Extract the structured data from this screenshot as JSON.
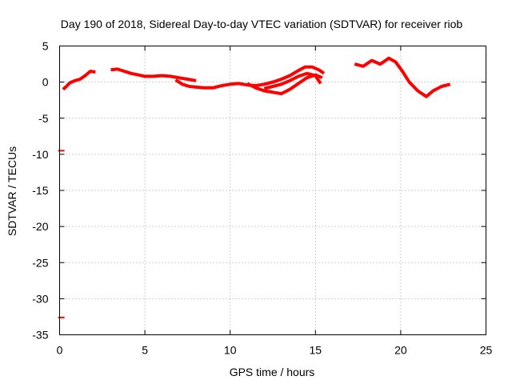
{
  "chart_data": {
    "type": "line",
    "title": "Day 190 of 2018, Sidereal Day-to-day VTEC variation (SDTVAR) for receiver riob",
    "xlabel": "GPS time / hours",
    "ylabel": "SDTVAR / TECUs",
    "xlim": [
      0,
      25
    ],
    "ylim": [
      -35,
      5
    ],
    "xticks": [
      0,
      5,
      10,
      15,
      20,
      25
    ],
    "yticks": [
      5,
      0,
      -5,
      -10,
      -15,
      -20,
      -25,
      -30,
      -35
    ],
    "grid": true,
    "legend": "none",
    "color": "#ff0000",
    "series": [
      {
        "name": "segment-1",
        "points": [
          [
            0.2,
            -1.0
          ],
          [
            0.4,
            -0.6
          ],
          [
            0.6,
            -0.1
          ],
          [
            0.9,
            0.2
          ],
          [
            1.2,
            0.4
          ],
          [
            1.5,
            0.9
          ],
          [
            1.8,
            1.5
          ],
          [
            2.1,
            1.4
          ]
        ]
      },
      {
        "name": "segment-2",
        "points": [
          [
            3.0,
            1.7
          ],
          [
            3.4,
            1.8
          ],
          [
            3.8,
            1.5
          ],
          [
            4.2,
            1.2
          ],
          [
            4.6,
            1.0
          ],
          [
            5.0,
            0.8
          ],
          [
            5.5,
            0.8
          ],
          [
            6.0,
            0.9
          ],
          [
            6.5,
            0.8
          ],
          [
            7.0,
            0.6
          ],
          [
            7.5,
            0.4
          ],
          [
            8.0,
            0.2
          ]
        ]
      },
      {
        "name": "segment-3",
        "points": [
          [
            6.8,
            0.3
          ],
          [
            7.2,
            -0.3
          ],
          [
            7.6,
            -0.6
          ],
          [
            8.0,
            -0.7
          ],
          [
            8.5,
            -0.8
          ],
          [
            9.0,
            -0.8
          ],
          [
            9.5,
            -0.5
          ],
          [
            10.0,
            -0.3
          ],
          [
            10.5,
            -0.2
          ],
          [
            11.0,
            -0.4
          ],
          [
            11.5,
            -0.5
          ],
          [
            12.0,
            -0.3
          ],
          [
            12.5,
            0.0
          ],
          [
            13.0,
            0.4
          ],
          [
            13.5,
            0.9
          ],
          [
            14.0,
            1.6
          ],
          [
            14.4,
            2.1
          ],
          [
            14.8,
            2.1
          ],
          [
            15.2,
            1.7
          ],
          [
            15.5,
            1.2
          ]
        ]
      },
      {
        "name": "segment-4",
        "points": [
          [
            11.0,
            -0.2
          ],
          [
            11.5,
            -0.8
          ],
          [
            12.0,
            -1.2
          ],
          [
            12.5,
            -1.4
          ],
          [
            13.0,
            -1.6
          ],
          [
            13.5,
            -1.0
          ],
          [
            14.0,
            -0.2
          ],
          [
            14.5,
            0.6
          ],
          [
            15.0,
            1.0
          ],
          [
            15.4,
            0.6
          ]
        ]
      },
      {
        "name": "segment-5",
        "points": [
          [
            12.0,
            -0.9
          ],
          [
            12.5,
            -0.6
          ],
          [
            13.0,
            -0.3
          ],
          [
            13.5,
            0.2
          ],
          [
            14.0,
            0.8
          ],
          [
            14.5,
            1.2
          ],
          [
            15.0,
            0.9
          ],
          [
            15.3,
            -0.2
          ]
        ]
      },
      {
        "name": "segment-6",
        "points": [
          [
            17.3,
            2.5
          ],
          [
            17.8,
            2.2
          ],
          [
            18.3,
            3.0
          ],
          [
            18.8,
            2.5
          ],
          [
            19.3,
            3.3
          ],
          [
            19.7,
            2.8
          ],
          [
            20.1,
            1.5
          ],
          [
            20.5,
            0.0
          ],
          [
            21.0,
            -1.2
          ],
          [
            21.5,
            -2.0
          ],
          [
            21.9,
            -1.2
          ],
          [
            22.4,
            -0.6
          ],
          [
            22.9,
            -0.3
          ]
        ]
      }
    ],
    "outliers": [
      [
        0.1,
        -9.5
      ],
      [
        0.1,
        -32.6
      ]
    ]
  }
}
